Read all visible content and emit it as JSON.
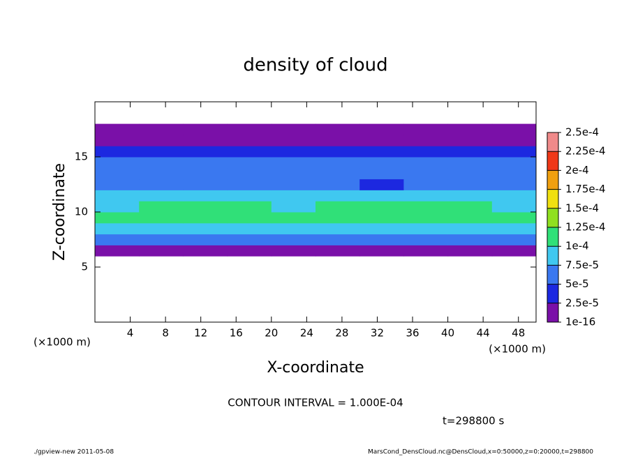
{
  "chart_data": {
    "type": "heatmap",
    "title": "density of cloud",
    "x_label": "X-coordinate",
    "y_label": "Z-coordinate",
    "x_unit": "(×1000 m)",
    "y_unit": "(×1000 m)",
    "contour_note": "CONTOUR INTERVAL = 1.000E-04",
    "time_note": "t=298800 s",
    "footer_left": "./gpview-new  2011-05-08",
    "footer_right": "MarsCond_DensCloud.nc@DensCloud,x=0:50000,z=0:20000,t=298800",
    "xlim": [
      0,
      50
    ],
    "ylim": [
      0,
      20
    ],
    "xticks": [
      4,
      8,
      12,
      16,
      20,
      24,
      28,
      32,
      36,
      40,
      44,
      48
    ],
    "yticks": [
      5,
      10,
      15
    ],
    "x": [
      2.5,
      7.5,
      12.5,
      17.5,
      22.5,
      27.5,
      32.5,
      37.5,
      42.5,
      47.5
    ],
    "y": [
      0.5,
      1.5,
      2.5,
      3.5,
      4.5,
      5.5,
      6.5,
      7.5,
      8.5,
      9.5,
      10.5,
      11.5,
      12.5,
      13.5,
      14.5,
      15.5,
      16.5,
      17.5,
      18.5,
      19.5
    ],
    "z": [
      [
        0,
        0,
        0,
        0,
        0,
        0,
        0,
        0,
        0,
        0
      ],
      [
        0,
        0,
        0,
        0,
        0,
        0,
        0,
        0,
        0,
        0
      ],
      [
        0,
        0,
        0,
        0,
        0,
        0,
        0,
        0,
        0,
        0
      ],
      [
        0,
        0,
        0,
        0,
        0,
        0,
        0,
        0,
        0,
        0
      ],
      [
        0,
        0,
        0,
        0,
        0,
        0,
        0,
        0,
        0,
        0
      ],
      [
        0,
        0,
        0,
        0,
        0,
        0,
        0,
        0,
        0,
        0
      ],
      [
        2e-05,
        2e-05,
        2e-05,
        1.5e-05,
        2e-05,
        1.5e-05,
        1.5e-05,
        2e-05,
        2e-05,
        2e-05
      ],
      [
        5.5e-05,
        6e-05,
        6e-05,
        6e-05,
        5.5e-05,
        5e-05,
        5.5e-05,
        6e-05,
        6e-05,
        6e-05
      ],
      [
        9e-05,
        9.5e-05,
        9e-05,
        8.5e-05,
        8e-05,
        8.5e-05,
        9e-05,
        9.5e-05,
        9.5e-05,
        9e-05
      ],
      [
        0.000105,
        0.00011,
        0.00011,
        0.000105,
        0.000105,
        0.00011,
        0.00011,
        0.00011,
        0.00012,
        0.000105
      ],
      [
        9.5e-05,
        0.000105,
        0.000105,
        0.0001,
        9.5e-05,
        0.000105,
        0.000105,
        0.000105,
        0.000105,
        9e-05
      ],
      [
        8e-05,
        8.5e-05,
        8.5e-05,
        8e-05,
        8e-05,
        8e-05,
        8e-05,
        8e-05,
        8.5e-05,
        8e-05
      ],
      [
        7e-05,
        7e-05,
        7e-05,
        7e-05,
        7e-05,
        6e-05,
        4.5e-05,
        6e-05,
        7e-05,
        7e-05
      ],
      [
        7e-05,
        7e-05,
        7e-05,
        7e-05,
        6e-05,
        5.5e-05,
        5.5e-05,
        6e-05,
        7e-05,
        7e-05
      ],
      [
        7e-05,
        7e-05,
        7e-05,
        7e-05,
        6e-05,
        5e-05,
        6e-05,
        6.5e-05,
        6.5e-05,
        6.5e-05
      ],
      [
        3.5e-05,
        4e-05,
        4e-05,
        4e-05,
        4e-05,
        4e-05,
        4e-05,
        4e-05,
        4e-05,
        3.5e-05
      ],
      [
        1e-05,
        1e-05,
        1e-05,
        1e-05,
        1e-05,
        1e-05,
        1e-05,
        1e-05,
        1e-05,
        1e-05
      ],
      [
        1e-05,
        1e-05,
        1e-05,
        1e-05,
        1e-05,
        1e-05,
        1e-05,
        1e-05,
        1e-05,
        1e-05
      ],
      [
        0,
        0,
        0,
        0,
        0,
        0,
        0,
        0,
        0,
        0
      ],
      [
        0,
        0,
        0,
        0,
        0,
        0,
        0,
        0,
        0,
        0
      ]
    ],
    "levels": [
      {
        "value": 1e-16,
        "label": "1e-16"
      },
      {
        "value": 2.5e-05,
        "label": "2.5e-5"
      },
      {
        "value": 5e-05,
        "label": "5e-5"
      },
      {
        "value": 7.5e-05,
        "label": "7.5e-5"
      },
      {
        "value": 0.0001,
        "label": "1e-4"
      },
      {
        "value": 0.000125,
        "label": "1.25e-4"
      },
      {
        "value": 0.00015,
        "label": "1.5e-4"
      },
      {
        "value": 0.000175,
        "label": "1.75e-4"
      },
      {
        "value": 0.0002,
        "label": "2e-4"
      },
      {
        "value": 0.000225,
        "label": "2.25e-4"
      },
      {
        "value": 0.00025,
        "label": "2.5e-4"
      }
    ],
    "colors": [
      "#7a10a8",
      "#1c28e0",
      "#3a78f0",
      "#40c8f0",
      "#30e078",
      "#90e020",
      "#f0e010",
      "#f0a010",
      "#f03818",
      "#f08a8a"
    ]
  }
}
